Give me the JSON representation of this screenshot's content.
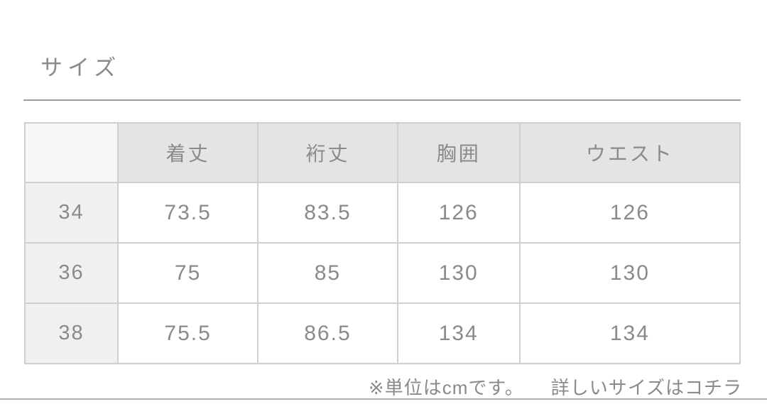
{
  "title": "サイズ",
  "table": {
    "headers": [
      "",
      "着丈",
      "裄丈",
      "胸囲",
      "ウエスト"
    ],
    "rows": [
      [
        "34",
        "73.5",
        "83.5",
        "126",
        "126"
      ],
      [
        "36",
        "75",
        "85",
        "130",
        "130"
      ],
      [
        "38",
        "75.5",
        "86.5",
        "134",
        "134"
      ]
    ]
  },
  "footer": {
    "unit_note": "※単位はcmです。",
    "detail_link": "詳しいサイズはコチラ"
  },
  "colors": {
    "text": "#8a8a8a",
    "header_bg": "#e4e4e4",
    "row_label_bg": "#f0f0f0",
    "border": "#cfcfcf",
    "rule": "#9d9d9d"
  },
  "chart_data": {
    "type": "table",
    "title": "サイズ",
    "columns": [
      "サイズ",
      "着丈",
      "裄丈",
      "胸囲",
      "ウエスト"
    ],
    "unit": "cm",
    "rows": [
      {
        "size": "34",
        "着丈": 73.5,
        "裄丈": 83.5,
        "胸囲": 126,
        "ウエスト": 126
      },
      {
        "size": "36",
        "着丈": 75,
        "裄丈": 85,
        "胸囲": 130,
        "ウエスト": 130
      },
      {
        "size": "38",
        "着丈": 75.5,
        "裄丈": 86.5,
        "胸囲": 134,
        "ウエスト": 134
      }
    ],
    "notes": [
      "※単位はcmです。",
      "詳しいサイズはコチラ"
    ]
  }
}
